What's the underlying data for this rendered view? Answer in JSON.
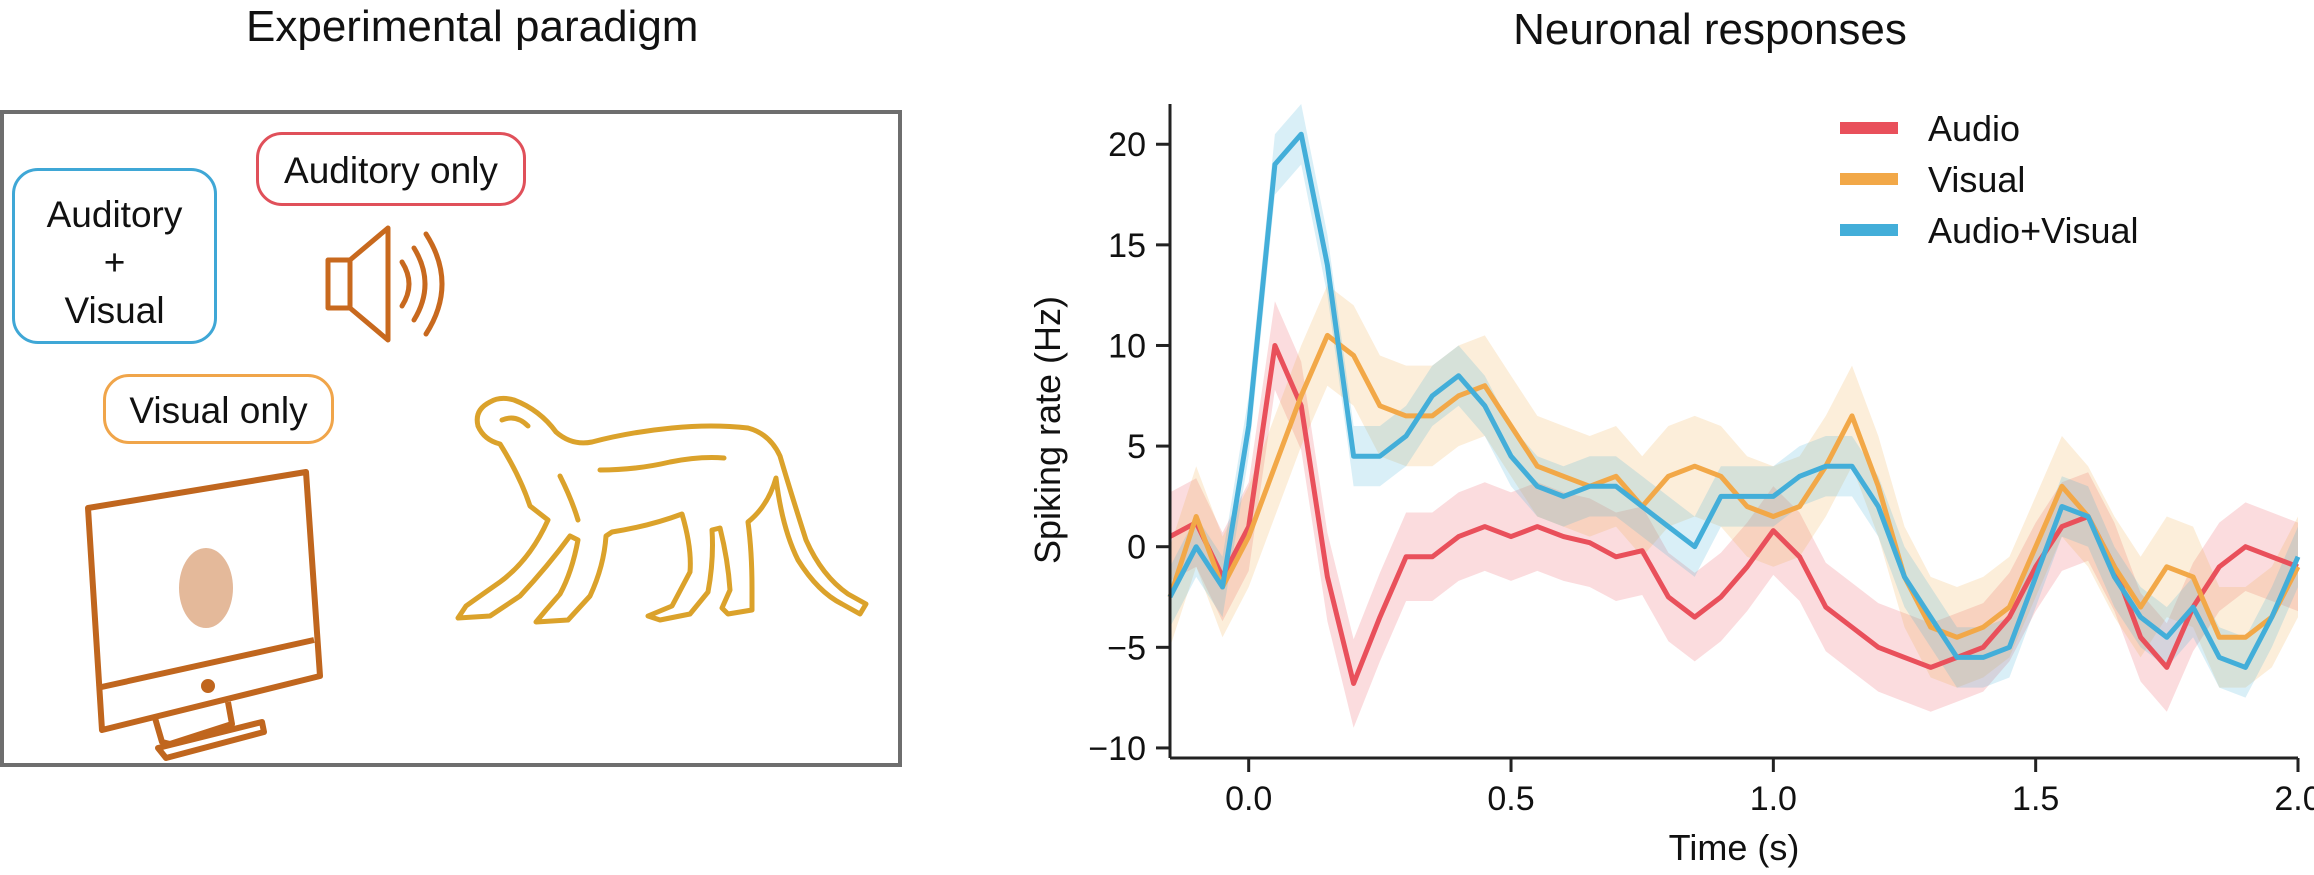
{
  "left_panel": {
    "title": "Experimental paradigm",
    "conditions": {
      "audio_visual": [
        "Auditory",
        "+",
        "Visual"
      ],
      "auditory_only": "Auditory only",
      "visual_only": "Visual only"
    },
    "icons": [
      "speaker-icon",
      "monitor-icon",
      "monkey-icon"
    ]
  },
  "chart_data": {
    "type": "line",
    "title": "Neuronal responses",
    "xlabel": "Time (s)",
    "ylabel": "Spiking rate (Hz)",
    "xlim": [
      -0.15,
      2.0
    ],
    "ylim": [
      -10.5,
      22
    ],
    "xticks": [
      0.0,
      0.5,
      1.0,
      1.5,
      2.0
    ],
    "xtick_labels": [
      "0.0",
      "0.5",
      "1.0",
      "1.5",
      "2.0"
    ],
    "yticks": [
      -10,
      -5,
      0,
      5,
      10,
      15,
      20
    ],
    "ytick_labels": [
      "−10",
      "−5",
      "0",
      "5",
      "10",
      "15",
      "20"
    ],
    "legend_position": "top-right",
    "x": [
      -0.15,
      -0.1,
      -0.05,
      0.0,
      0.05,
      0.1,
      0.15,
      0.2,
      0.25,
      0.3,
      0.35,
      0.4,
      0.45,
      0.5,
      0.55,
      0.6,
      0.65,
      0.7,
      0.75,
      0.8,
      0.85,
      0.9,
      0.95,
      1.0,
      1.05,
      1.1,
      1.15,
      1.2,
      1.25,
      1.3,
      1.35,
      1.4,
      1.45,
      1.5,
      1.55,
      1.6,
      1.65,
      1.7,
      1.75,
      1.8,
      1.85,
      1.9,
      1.95,
      2.0
    ],
    "series": [
      {
        "name": "Audio",
        "color": "#e9505b",
        "values": [
          0.5,
          1.2,
          -1.5,
          1.0,
          10.0,
          7.0,
          -1.5,
          -6.8,
          -3.5,
          -0.5,
          -0.5,
          0.5,
          1.0,
          0.5,
          1.0,
          0.5,
          0.2,
          -0.5,
          -0.2,
          -2.5,
          -3.5,
          -2.5,
          -1.0,
          0.8,
          -0.5,
          -3.0,
          -4.0,
          -5.0,
          -5.5,
          -6.0,
          -5.5,
          -5.0,
          -3.5,
          -1.0,
          1.0,
          1.5,
          -1.0,
          -4.5,
          -6.0,
          -3.0,
          -1.0,
          0.0,
          -0.5,
          -1.0
        ],
        "band": 2.2
      },
      {
        "name": "Visual",
        "color": "#f2a848",
        "values": [
          -2.5,
          1.5,
          -2.0,
          0.5,
          4.0,
          7.5,
          10.5,
          9.5,
          7.0,
          6.5,
          6.5,
          7.5,
          8.0,
          6.0,
          4.0,
          3.5,
          3.0,
          3.5,
          2.0,
          3.5,
          4.0,
          3.5,
          2.0,
          1.5,
          2.0,
          4.0,
          6.5,
          3.0,
          -1.5,
          -4.0,
          -4.5,
          -4.0,
          -3.0,
          0.0,
          3.0,
          1.5,
          -1.0,
          -3.0,
          -1.0,
          -1.5,
          -4.5,
          -4.5,
          -3.5,
          -1.0
        ],
        "band": 2.5
      },
      {
        "name": "Audio+Visual",
        "color": "#43aed9",
        "values": [
          -2.5,
          0.0,
          -2.0,
          6.0,
          19.0,
          20.5,
          14.0,
          4.5,
          4.5,
          5.5,
          7.5,
          8.5,
          7.0,
          4.5,
          3.0,
          2.5,
          3.0,
          3.0,
          2.0,
          1.0,
          0.0,
          2.5,
          2.5,
          2.5,
          3.5,
          4.0,
          4.0,
          2.0,
          -1.5,
          -3.5,
          -5.5,
          -5.5,
          -5.0,
          -1.5,
          2.0,
          1.5,
          -1.5,
          -3.5,
          -4.5,
          -3.0,
          -5.5,
          -6.0,
          -3.5,
          -0.5
        ],
        "band": 1.5
      }
    ]
  }
}
